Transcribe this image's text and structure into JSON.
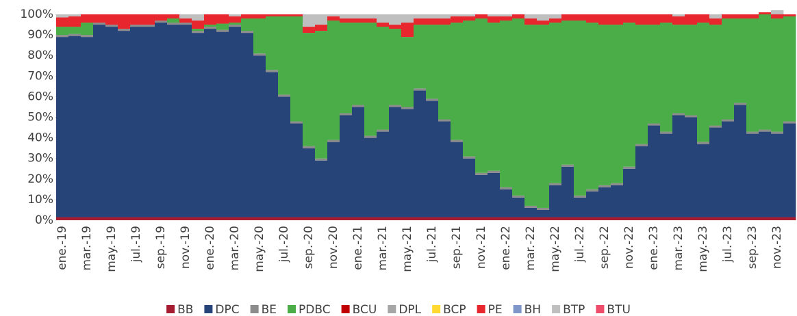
{
  "chart_data": {
    "type": "stacked_bar",
    "categories": [
      "ene.-19",
      null,
      "mar.-19",
      null,
      "may.-19",
      null,
      "jul.-19",
      null,
      "sep.-19",
      null,
      "nov.-19",
      null,
      "ene.-20",
      null,
      "mar.-20",
      null,
      "may.-20",
      null,
      "jul.-20",
      null,
      "sep.-20",
      null,
      "nov.-20",
      null,
      "ene.-21",
      null,
      "mar.-21",
      null,
      "may.-21",
      null,
      "jul.-21",
      null,
      "sep.-21",
      null,
      "nov.-21",
      null,
      "ene.-22",
      null,
      "mar.-22",
      null,
      "may.-22",
      null,
      "jul.-22",
      null,
      "sep.-22",
      null,
      "nov.-22",
      null,
      "ene.-23",
      null,
      "mar.-23",
      null,
      "may.-23",
      null,
      "jul.-23",
      null,
      "sep.-23",
      null,
      "nov.-23",
      null
    ],
    "series": [
      {
        "name": "BB",
        "color": "#a51c30",
        "values": [
          1.5,
          1.5,
          1.5,
          1.5,
          1.5,
          1.5,
          1.5,
          1.5,
          1.5,
          1.5,
          1.5,
          1.5,
          1.5,
          1.5,
          1.5,
          1.5,
          1.5,
          1.5,
          1.5,
          1.5,
          1.5,
          1.5,
          1.5,
          1.5,
          1.5,
          1.5,
          1.5,
          1.5,
          1.5,
          1.5,
          1.5,
          1.5,
          1.5,
          1.5,
          1.5,
          1.5,
          1.5,
          1.5,
          1.5,
          1.5,
          1.5,
          1.5,
          1.5,
          1.5,
          1.5,
          1.5,
          1.5,
          1.5,
          1.5,
          1.5,
          1.5,
          1.5,
          1.5,
          1.5,
          1.5,
          1.5,
          1.5,
          1.5,
          1.5,
          1.5
        ]
      },
      {
        "name": "DPC",
        "color": "#264478",
        "values": [
          87.5,
          88,
          87.5,
          93.5,
          92.5,
          90.5,
          92.5,
          92.5,
          94.5,
          93.5,
          93.5,
          89.5,
          91.5,
          90,
          92.5,
          89.5,
          78.5,
          70.5,
          58.5,
          45.5,
          33.5,
          27.5,
          36.5,
          49.5,
          53.5,
          38.5,
          41.5,
          53.5,
          52.5,
          61.5,
          56.5,
          46.5,
          36.5,
          28.5,
          20.5,
          21.5,
          13.5,
          9.5,
          4.5,
          3.5,
          15.5,
          24.5,
          9.5,
          12.5,
          14.5,
          15.5,
          23.5,
          34.5,
          44.5,
          40.5,
          49.5,
          48.5,
          35.5,
          43.5,
          46.5,
          54.5,
          40.5,
          41.5,
          40.5,
          45.5
        ]
      },
      {
        "name": "BE",
        "color": "#8c8c8c",
        "values": [
          1,
          1,
          1,
          1,
          1,
          1,
          1,
          1,
          1,
          1,
          1,
          1,
          1,
          1,
          1,
          1,
          1,
          1,
          1,
          1,
          1,
          1,
          1,
          1,
          1,
          1,
          1,
          1,
          1,
          1,
          1,
          1,
          1,
          1,
          1,
          1,
          1,
          1,
          1,
          1,
          1,
          1,
          1,
          1,
          1,
          1,
          1,
          1,
          1,
          1,
          1,
          1,
          1,
          1,
          1,
          1,
          1,
          1,
          1,
          1
        ]
      },
      {
        "name": "PDBC",
        "color": "#4aad48",
        "values": [
          4,
          3.5,
          6,
          0,
          0,
          0,
          0,
          0,
          0,
          2,
          0,
          1,
          1,
          3,
          1,
          6,
          17,
          26,
          38,
          51,
          55,
          62,
          58,
          44,
          40,
          55,
          50,
          37,
          34,
          31,
          36,
          46,
          57,
          66,
          75,
          72,
          81,
          86,
          88,
          89,
          78,
          70,
          85,
          81,
          78,
          77,
          70,
          58,
          48,
          53,
          43,
          44,
          58,
          49,
          49,
          41,
          55,
          56,
          55,
          51
        ]
      },
      {
        "name": "BCU",
        "color": "#c00000",
        "values": [
          0,
          0,
          0,
          0,
          0,
          0,
          0,
          0,
          0,
          0,
          0,
          0,
          0,
          0,
          0,
          0,
          0,
          0,
          0,
          0,
          0,
          0,
          0,
          0,
          0,
          0,
          0,
          0,
          0,
          0,
          0,
          0,
          0,
          0,
          0,
          0,
          0,
          0,
          0,
          0,
          0,
          0,
          0,
          0,
          0,
          0,
          0,
          0,
          0,
          0,
          0,
          0,
          0,
          0,
          0,
          0,
          0,
          0,
          0,
          0
        ]
      },
      {
        "name": "DPL",
        "color": "#a6a6a6",
        "values": [
          0,
          0,
          0,
          0,
          0,
          0,
          0,
          0,
          0,
          0,
          0,
          0,
          0,
          0,
          0,
          0,
          0,
          0,
          0,
          0,
          0,
          0,
          0,
          0,
          0,
          0,
          0,
          0,
          0,
          0,
          0,
          0,
          0,
          0,
          0,
          0,
          0,
          0,
          0,
          0,
          0,
          0,
          0,
          0,
          0,
          0,
          0,
          0,
          0,
          0,
          0,
          0,
          0,
          0,
          0,
          0,
          0,
          0,
          0,
          0
        ]
      },
      {
        "name": "BCP",
        "color": "#ffd92f",
        "values": [
          0,
          0,
          0,
          0,
          0,
          0,
          0,
          0,
          0,
          0,
          0,
          0,
          0,
          0,
          0,
          0,
          0,
          0,
          0,
          0,
          0,
          0,
          0,
          0,
          0,
          0,
          0,
          0,
          0,
          0,
          0,
          0,
          0,
          0,
          0,
          0,
          0,
          0,
          0,
          0,
          0,
          0,
          0,
          0,
          0,
          0,
          0,
          0,
          0,
          0,
          0,
          0,
          0,
          0,
          0,
          0,
          0,
          0,
          0,
          0
        ]
      },
      {
        "name": "PE",
        "color": "#e8262e",
        "values": [
          4.5,
          5,
          4,
          4,
          5,
          7,
          5,
          5,
          3,
          2,
          2,
          4,
          5,
          4.5,
          3,
          2,
          2,
          1,
          1,
          1,
          3,
          3,
          2,
          2,
          2,
          2,
          2,
          2,
          7,
          3,
          3,
          3,
          3,
          2,
          2,
          3,
          2,
          2,
          3,
          2,
          2,
          3,
          3,
          4,
          5,
          5,
          4,
          5,
          5,
          4,
          4,
          5,
          4,
          3,
          2,
          2,
          2,
          1,
          2,
          1
        ]
      },
      {
        "name": "BH",
        "color": "#7f96c9",
        "values": [
          0,
          0,
          0,
          0,
          0,
          0,
          0,
          0,
          0,
          0,
          0,
          0,
          0,
          0,
          0,
          0,
          0,
          0,
          0,
          0,
          0,
          0,
          0,
          0,
          0,
          0,
          0,
          0,
          0,
          0,
          0,
          0,
          0,
          0,
          0,
          0,
          0,
          0,
          0,
          0,
          0,
          0,
          0,
          0,
          0,
          0,
          0,
          0,
          0,
          0,
          0,
          0,
          0,
          0,
          0,
          0,
          0,
          0,
          0,
          0
        ]
      },
      {
        "name": "BTP",
        "color": "#bfbfbf",
        "values": [
          1.5,
          1,
          0,
          0,
          0,
          0,
          0,
          0,
          0,
          0,
          2,
          3,
          0,
          0,
          1,
          0,
          0,
          0,
          0,
          0,
          6,
          5,
          1,
          2,
          2,
          2,
          4,
          5,
          4,
          2,
          2,
          2,
          1,
          1,
          0,
          1,
          1,
          0,
          2,
          3,
          2,
          0,
          0,
          0,
          0,
          0,
          0,
          0,
          0,
          0,
          1,
          0,
          0,
          2,
          0,
          0,
          0,
          0,
          2,
          0
        ]
      },
      {
        "name": "BTU",
        "color": "#ef4b6b",
        "values": [
          0,
          0,
          0,
          0,
          0,
          0,
          0,
          0,
          0,
          0,
          0,
          0,
          0,
          0,
          0,
          0,
          0,
          0,
          0,
          0,
          0,
          0,
          0,
          0,
          0,
          0,
          0,
          0,
          0,
          0,
          0,
          0,
          0,
          0,
          0,
          0,
          0,
          0,
          0,
          0,
          0,
          0,
          0,
          0,
          0,
          0,
          0,
          0,
          0,
          0,
          0,
          0,
          0,
          0,
          0,
          0,
          0,
          0,
          0,
          0
        ]
      }
    ],
    "ylim": [
      0,
      100
    ],
    "yticks": [
      {
        "value": 0,
        "label": "0%"
      },
      {
        "value": 10,
        "label": "10%"
      },
      {
        "value": 20,
        "label": "20%"
      },
      {
        "value": 30,
        "label": "30%"
      },
      {
        "value": 40,
        "label": "40%"
      },
      {
        "value": 50,
        "label": "50%"
      },
      {
        "value": 60,
        "label": "60%"
      },
      {
        "value": 70,
        "label": "70%"
      },
      {
        "value": 80,
        "label": "80%"
      },
      {
        "value": 90,
        "label": "90%"
      },
      {
        "value": 100,
        "label": "100%"
      }
    ],
    "legend": "bottom"
  }
}
